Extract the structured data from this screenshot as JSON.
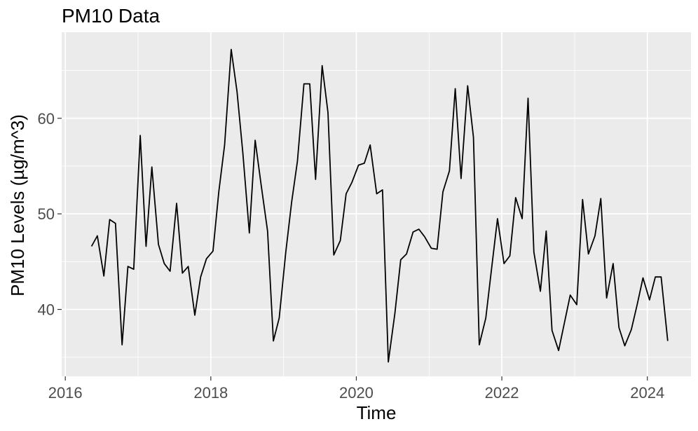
{
  "chart_data": {
    "type": "line",
    "title": "PM10 Data",
    "xlabel": "Time",
    "ylabel": "PM10 Levels (µg/m^3)",
    "xlim": [
      2015.95,
      2024.6
    ],
    "ylim": [
      33.0,
      69.0
    ],
    "x_ticks": [
      2016,
      2018,
      2020,
      2022,
      2024
    ],
    "y_ticks": [
      40,
      50,
      60
    ],
    "grid": true,
    "background": "#ebebeb",
    "grid_color": "#ffffff",
    "line_color": "#000000",
    "series": [
      {
        "x": [
          2016.36,
          2016.44,
          2016.53,
          2016.61,
          2016.69,
          2016.78,
          2016.86,
          2016.94,
          2017.03,
          2017.11,
          2017.19,
          2017.28,
          2017.36,
          2017.44,
          2017.53,
          2017.61,
          2017.69,
          2017.78,
          2017.86,
          2017.94,
          2018.03,
          2018.11,
          2018.19,
          2018.28,
          2018.36,
          2018.44,
          2018.53,
          2018.61,
          2018.69,
          2018.78,
          2018.86,
          2018.94,
          2019.03,
          2019.11,
          2019.19,
          2019.28,
          2019.36,
          2019.44,
          2019.53,
          2019.61,
          2019.69,
          2019.78,
          2019.86,
          2019.94,
          2020.03,
          2020.11,
          2020.19,
          2020.28,
          2020.36,
          2020.44,
          2020.53,
          2020.61,
          2020.69,
          2020.78,
          2020.86,
          2020.94,
          2021.03,
          2021.11,
          2021.19,
          2021.28,
          2021.36,
          2021.44,
          2021.53,
          2021.61,
          2021.69,
          2021.78,
          2021.86,
          2021.94,
          2022.03,
          2022.11,
          2022.19,
          2022.28,
          2022.36,
          2022.44,
          2022.53,
          2022.61,
          2022.69,
          2022.78,
          2022.86,
          2022.94,
          2023.03,
          2023.11,
          2023.19,
          2023.28,
          2023.36,
          2023.44,
          2023.53,
          2023.61,
          2023.69,
          2023.78,
          2023.86,
          2023.94,
          2024.03,
          2024.11,
          2024.19,
          2024.28
        ],
        "y": [
          46.6,
          47.7,
          43.5,
          49.4,
          49.0,
          36.3,
          44.5,
          44.2,
          58.2,
          46.6,
          54.9,
          46.8,
          44.8,
          44.0,
          51.1,
          43.8,
          44.5,
          39.4,
          43.4,
          45.3,
          46.1,
          52.3,
          57.2,
          67.2,
          62.8,
          56.4,
          48.0,
          57.7,
          53.1,
          48.2,
          36.7,
          39.1,
          46.0,
          51.2,
          55.5,
          63.6,
          63.6,
          53.6,
          65.5,
          60.6,
          45.7,
          47.2,
          52.1,
          53.3,
          55.1,
          55.3,
          57.2,
          52.1,
          52.5,
          34.5,
          39.6,
          45.2,
          45.8,
          48.1,
          48.4,
          47.6,
          46.4,
          46.3,
          52.3,
          54.5,
          63.1,
          53.7,
          63.4,
          58.0,
          36.3,
          39.1,
          44.3,
          49.5,
          44.8,
          45.6,
          51.7,
          49.5,
          62.1,
          46.0,
          41.9,
          48.2,
          37.8,
          35.7,
          38.6,
          41.5,
          40.5,
          51.5,
          45.8,
          47.7,
          51.6,
          41.2,
          44.8,
          38.1,
          36.2,
          37.9,
          40.5,
          43.3,
          41.0,
          43.4,
          43.4,
          36.7
        ]
      }
    ]
  }
}
